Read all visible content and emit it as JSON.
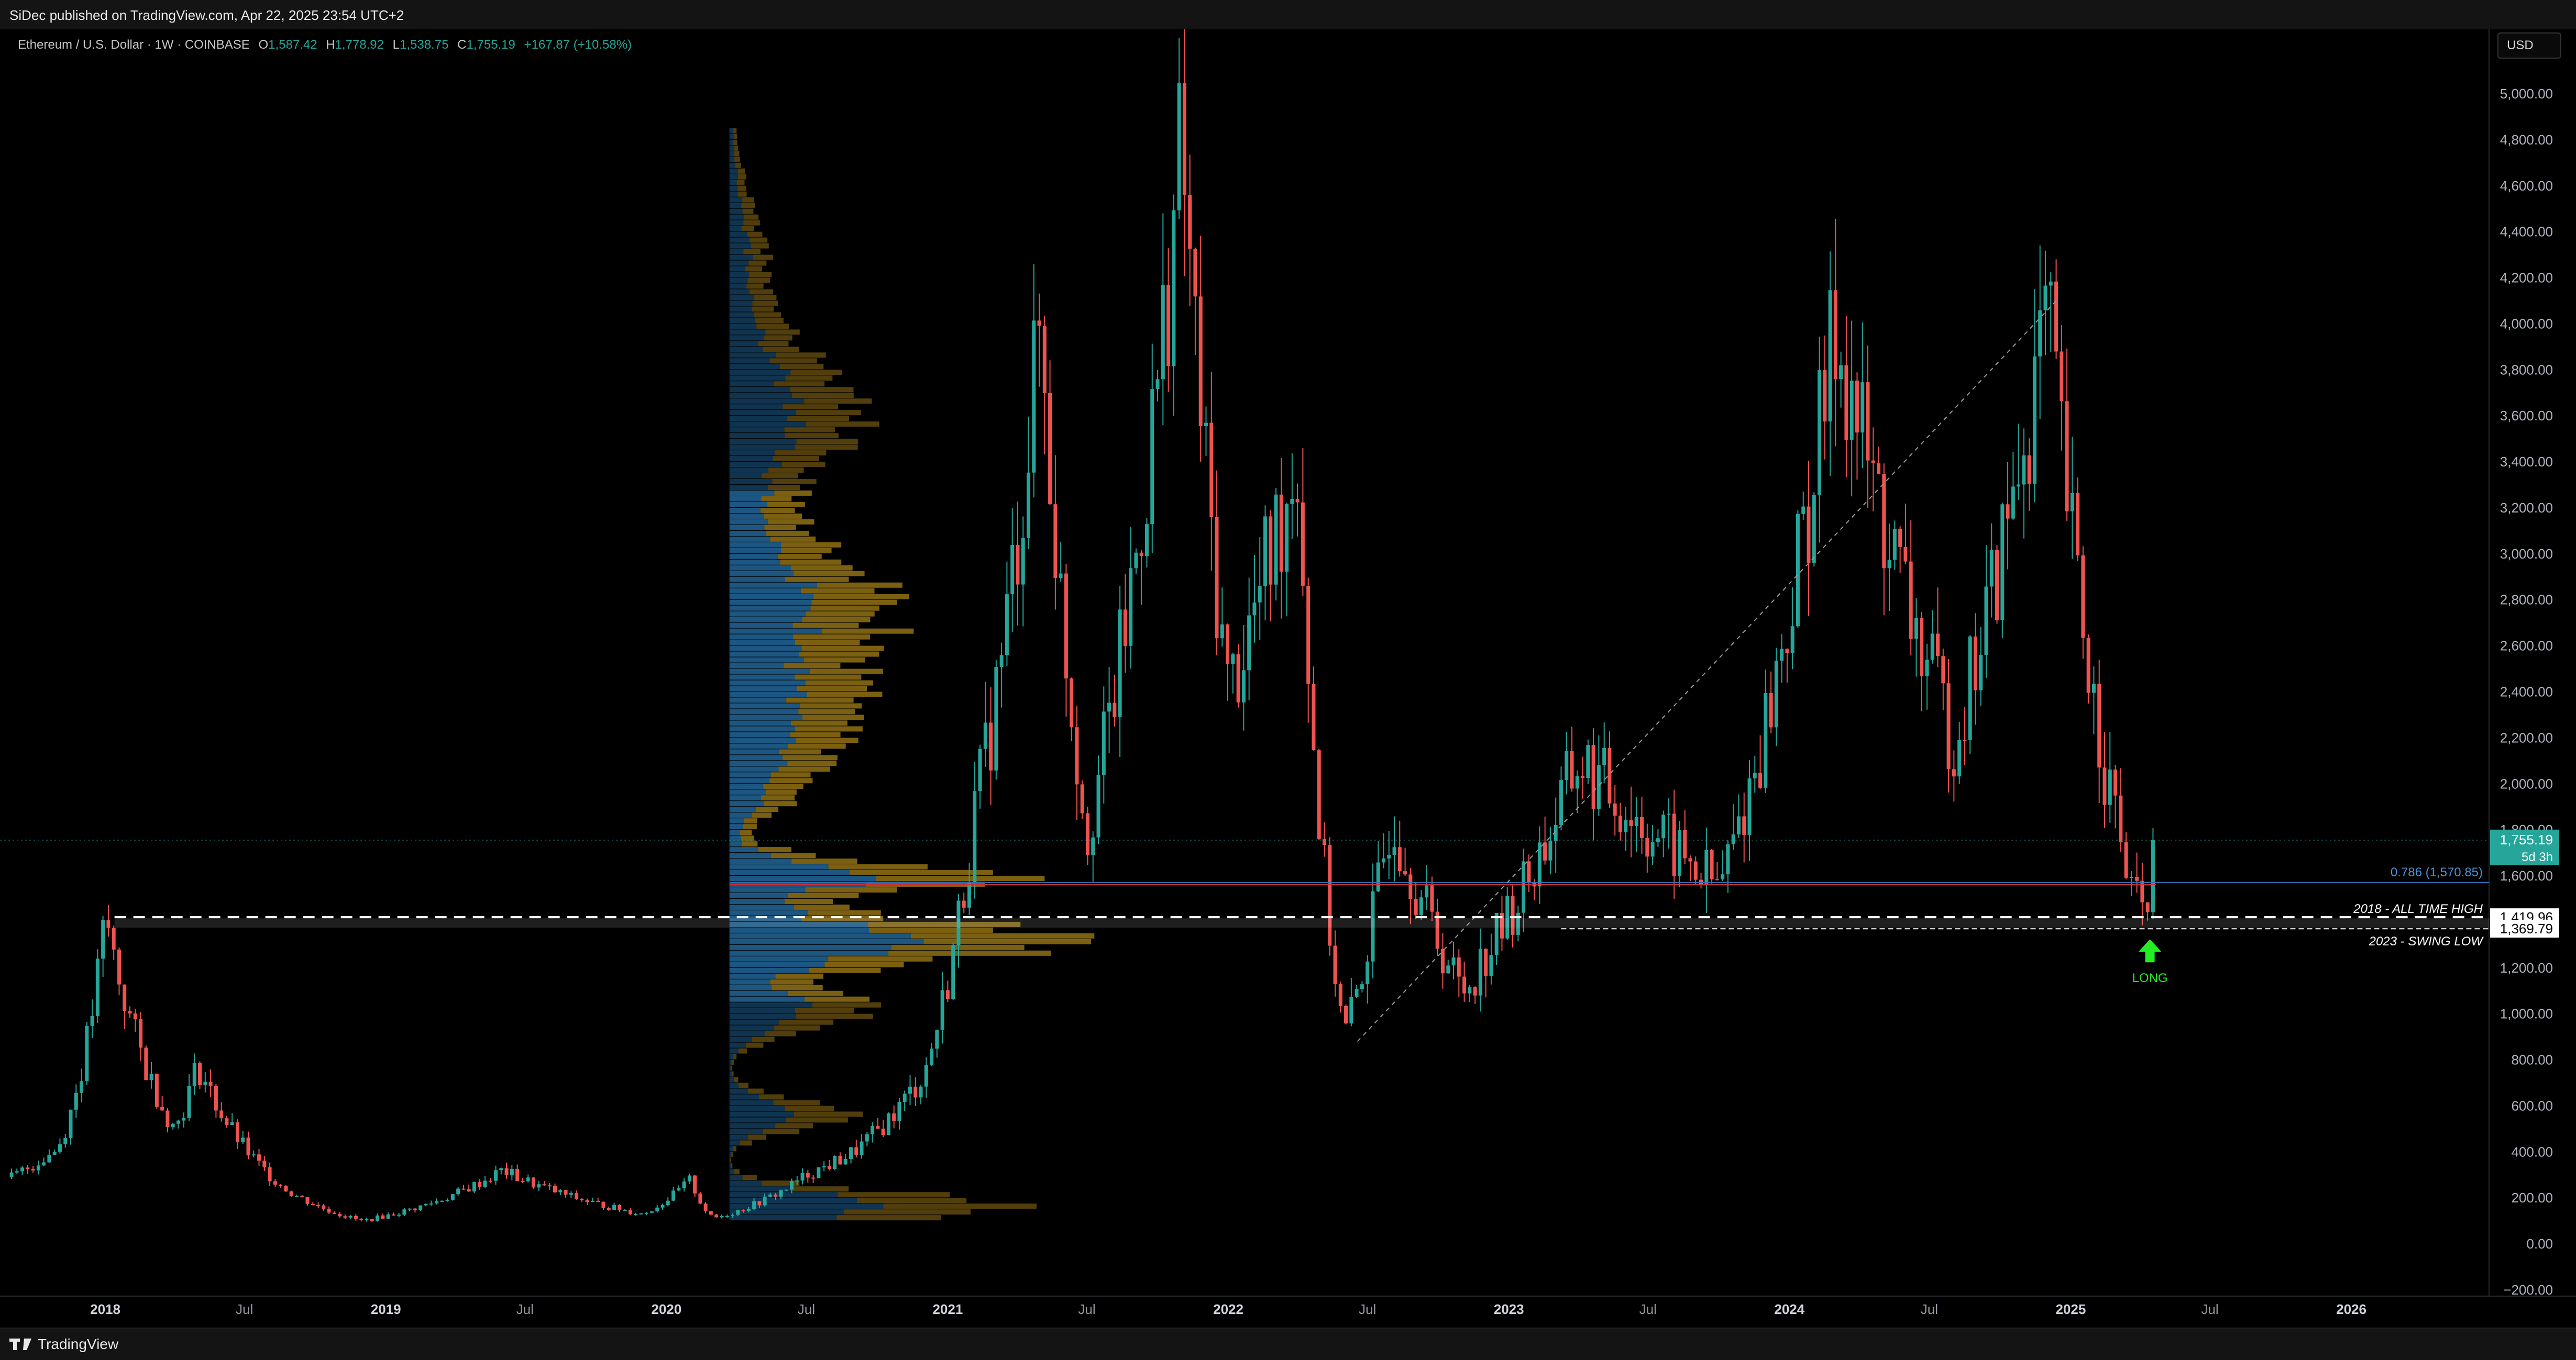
{
  "header": {
    "published": "SiDec published on TradingView.com, Apr 22, 2025 23:54 UTC+2"
  },
  "footer": {
    "brand": "TradingView"
  },
  "legend": {
    "symbol": "Ethereum / U.S. Dollar · 1W · COINBASE",
    "o_label": "O",
    "o": "1,587.42",
    "h_label": "H",
    "h": "1,778.92",
    "l_label": "L",
    "l": "1,538.75",
    "c_label": "C",
    "c": "1,755.19",
    "change": "+167.87 (+10.58%)"
  },
  "currency_button": "USD",
  "colors": {
    "up": "#26a69a",
    "down": "#ef5350",
    "volume_profile_gold": "#8a6a14",
    "volume_profile_blue": "#1f5f8f",
    "long_arrow": "#22ee22"
  },
  "chart_data": {
    "type": "candlestick",
    "interval": "1W",
    "ylim": [
      -200,
      5000
    ],
    "y_ticks": [
      "5,000.00",
      "4,800.00",
      "4,600.00",
      "4,400.00",
      "4,200.00",
      "4,000.00",
      "3,800.00",
      "3,600.00",
      "3,400.00",
      "3,200.00",
      "3,000.00",
      "2,800.00",
      "2,600.00",
      "2,400.00",
      "2,200.00",
      "2,000.00",
      "1,800.00",
      "1,600.00",
      "1,400.00",
      "1,200.00",
      "1,000.00",
      "800.00",
      "600.00",
      "400.00",
      "200.00",
      "0.00",
      "−200.00"
    ],
    "x_ticks": [
      "2018",
      "Jul",
      "2019",
      "Jul",
      "2020",
      "Jul",
      "2021",
      "Jul",
      "2022",
      "Jul",
      "2023",
      "Jul",
      "2024",
      "Jul",
      "2025",
      "Jul",
      "2026"
    ],
    "key_points": [
      {
        "date": "2017-09",
        "price": 290
      },
      {
        "date": "2017-11",
        "price": 420
      },
      {
        "date": "2018-01",
        "price": 1420
      },
      {
        "date": "2018-04",
        "price": 500
      },
      {
        "date": "2018-05",
        "price": 780
      },
      {
        "date": "2018-09",
        "price": 220
      },
      {
        "date": "2018-12",
        "price": 100
      },
      {
        "date": "2019-06",
        "price": 320
      },
      {
        "date": "2019-12",
        "price": 130
      },
      {
        "date": "2020-02",
        "price": 280
      },
      {
        "date": "2020-03",
        "price": 110
      },
      {
        "date": "2020-07",
        "price": 300
      },
      {
        "date": "2020-09",
        "price": 400
      },
      {
        "date": "2020-12",
        "price": 740
      },
      {
        "date": "2021-02",
        "price": 1800
      },
      {
        "date": "2021-05",
        "price": 4000
      },
      {
        "date": "2021-07",
        "price": 1800
      },
      {
        "date": "2021-11",
        "price": 4800
      },
      {
        "date": "2022-01",
        "price": 2400
      },
      {
        "date": "2022-04",
        "price": 3450
      },
      {
        "date": "2022-06",
        "price": 900
      },
      {
        "date": "2022-08",
        "price": 1900
      },
      {
        "date": "2022-11",
        "price": 1100
      },
      {
        "date": "2023-04",
        "price": 2100
      },
      {
        "date": "2023-10",
        "price": 1550
      },
      {
        "date": "2024-03",
        "price": 4000
      },
      {
        "date": "2024-08",
        "price": 2200
      },
      {
        "date": "2024-12",
        "price": 4050
      },
      {
        "date": "2025-04",
        "price": 1400
      },
      {
        "date": "2025-04-22",
        "price": 1755.19
      }
    ],
    "annotations": {
      "fib_label": "0.786 (1,570.85)",
      "fib_price": 1570.85,
      "ath_label": "2018 - ALL TIME HIGH",
      "ath_price": 1419.96,
      "ath_value": "1,419.96",
      "swing_label": "2023 - SWING LOW",
      "swing_price": 1369.79,
      "swing_value": "1,369.79",
      "last_price": "1,755.19",
      "last_price_num": 1755.19,
      "countdown": "5d 3h",
      "long_label": "LONG"
    },
    "volume_profile": {
      "range": [
        100,
        4850
      ],
      "value_area": [
        1050,
        3270
      ],
      "poc": 1560
    }
  }
}
